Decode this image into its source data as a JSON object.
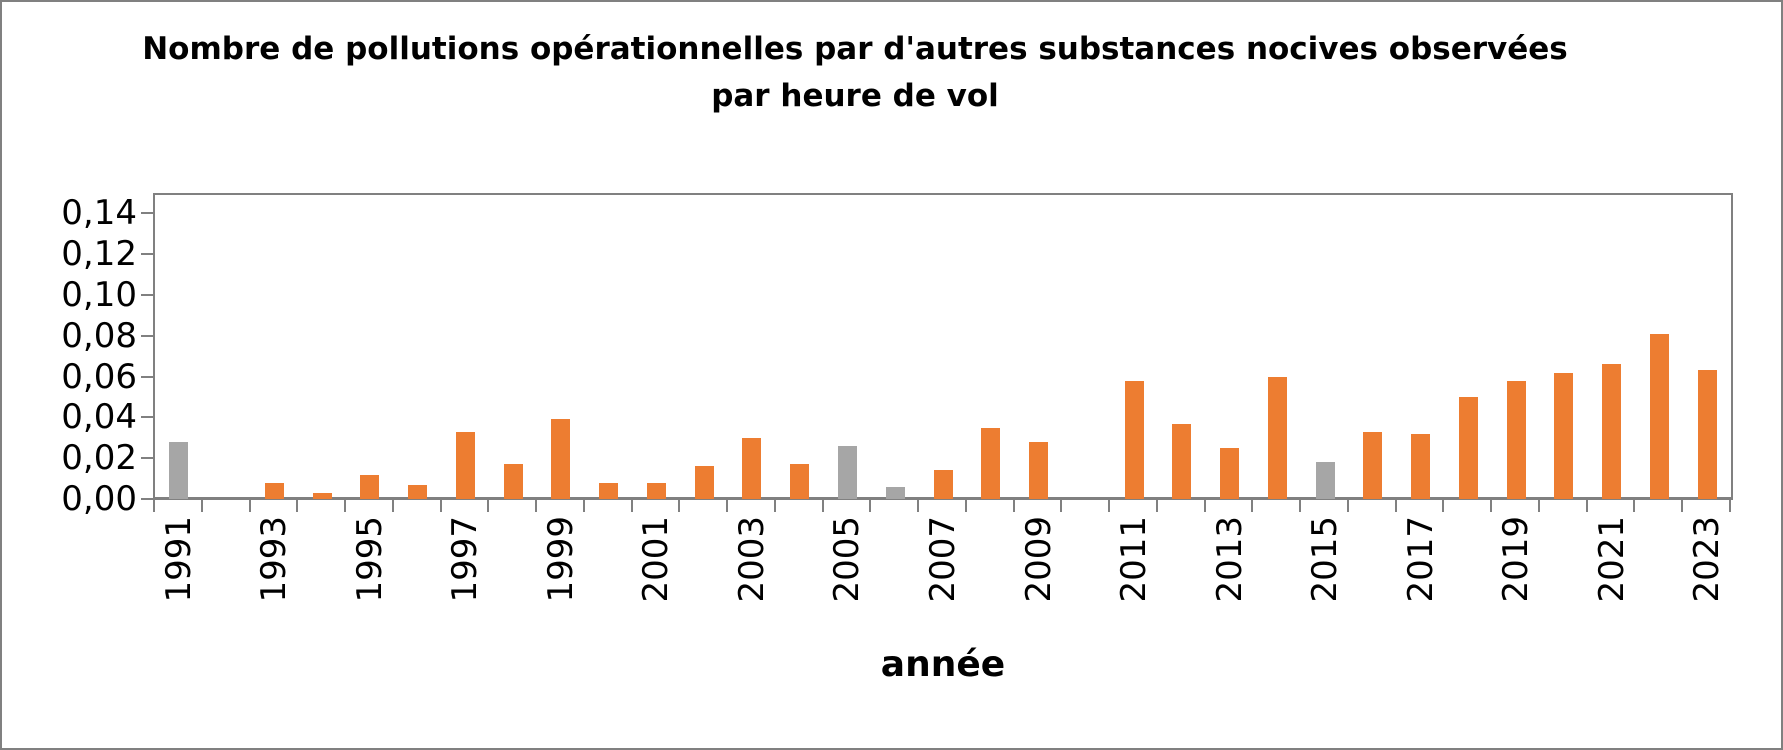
{
  "chart_data": {
    "type": "bar",
    "title_line1": "Nombre de pollutions opérationnelles par d'autres substances nocives observées",
    "title_line2": "par heure de vol",
    "xlabel": "année",
    "ylabel": "",
    "ylim": [
      0,
      0.15
    ],
    "grid": false,
    "legend": "none",
    "decimal_separator": ",",
    "ytick_values": [
      0.0,
      0.02,
      0.04,
      0.06,
      0.08,
      0.1,
      0.12,
      0.14
    ],
    "ytick_labels": [
      "0,00",
      "0,02",
      "0,04",
      "0,06",
      "0,08",
      "0,10",
      "0,12",
      "0,14"
    ],
    "xtick_labeled_years": [
      "1991",
      "1993",
      "1995",
      "1997",
      "1999",
      "2001",
      "2003",
      "2005",
      "2007",
      "2009",
      "2011",
      "2013",
      "2015",
      "2017",
      "2019",
      "2021",
      "2023"
    ],
    "palette": {
      "orange": "#ED7D31",
      "gray": "#A6A6A6"
    },
    "axis_color": "#808080",
    "bars": [
      {
        "year": "1991",
        "value": 0.028,
        "color": "gray"
      },
      {
        "year": "1992",
        "value": 0,
        "color": "orange"
      },
      {
        "year": "1993",
        "value": 0.008,
        "color": "orange"
      },
      {
        "year": "1994",
        "value": 0.003,
        "color": "orange"
      },
      {
        "year": "1995",
        "value": 0.012,
        "color": "orange"
      },
      {
        "year": "1996",
        "value": 0.007,
        "color": "orange"
      },
      {
        "year": "1997",
        "value": 0.033,
        "color": "orange"
      },
      {
        "year": "1998",
        "value": 0.017,
        "color": "orange"
      },
      {
        "year": "1999",
        "value": 0.039,
        "color": "orange"
      },
      {
        "year": "2000",
        "value": 0.008,
        "color": "orange"
      },
      {
        "year": "2001",
        "value": 0.008,
        "color": "orange"
      },
      {
        "year": "2002",
        "value": 0.016,
        "color": "orange"
      },
      {
        "year": "2003",
        "value": 0.03,
        "color": "orange"
      },
      {
        "year": "2004",
        "value": 0.017,
        "color": "orange"
      },
      {
        "year": "2005",
        "value": 0.026,
        "color": "gray"
      },
      {
        "year": "2006",
        "value": 0.006,
        "color": "gray"
      },
      {
        "year": "2007",
        "value": 0.014,
        "color": "orange"
      },
      {
        "year": "2008",
        "value": 0.035,
        "color": "orange"
      },
      {
        "year": "2009",
        "value": 0.028,
        "color": "orange"
      },
      {
        "year": "2010",
        "value": 0,
        "color": "orange"
      },
      {
        "year": "2011",
        "value": 0.058,
        "color": "orange"
      },
      {
        "year": "2012",
        "value": 0.037,
        "color": "orange"
      },
      {
        "year": "2013",
        "value": 0.025,
        "color": "orange"
      },
      {
        "year": "2014",
        "value": 0.06,
        "color": "orange"
      },
      {
        "year": "2015",
        "value": 0.018,
        "color": "gray"
      },
      {
        "year": "2016",
        "value": 0.033,
        "color": "orange"
      },
      {
        "year": "2017",
        "value": 0.032,
        "color": "orange"
      },
      {
        "year": "2018",
        "value": 0.05,
        "color": "orange"
      },
      {
        "year": "2019",
        "value": 0.058,
        "color": "orange"
      },
      {
        "year": "2020",
        "value": 0.062,
        "color": "orange"
      },
      {
        "year": "2021",
        "value": 0.066,
        "color": "orange"
      },
      {
        "year": "2022",
        "value": 0.081,
        "color": "orange"
      },
      {
        "year": "2023",
        "value": 0.063,
        "color": "orange"
      }
    ]
  }
}
